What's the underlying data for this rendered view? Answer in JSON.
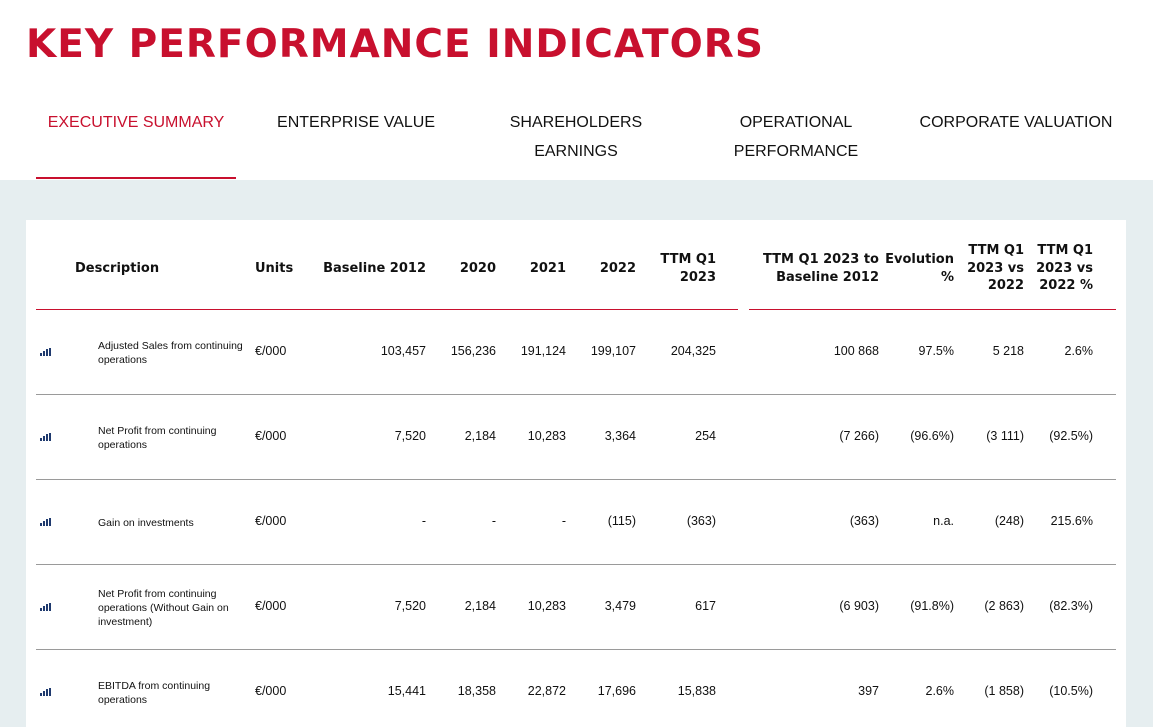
{
  "page": {
    "title": "KEY PERFORMANCE INDICATORS"
  },
  "tabs": [
    {
      "line1": "EXECUTIVE SUMMARY",
      "line2": ""
    },
    {
      "line1": "ENTERPRISE VALUE",
      "line2": ""
    },
    {
      "line1": "SHAREHOLDERS",
      "line2": "EARNINGS"
    },
    {
      "line1": "OPERATIONAL",
      "line2": "PERFORMANCE"
    },
    {
      "line1": "CORPORATE VALUATION",
      "line2": ""
    }
  ],
  "active_tab": "EXECUTIVE SUMMARY",
  "colors": {
    "brand_red": "#c8102e",
    "background_grey": "#e6eef0",
    "icon_blue": "#1f3a6e"
  },
  "table": {
    "headers": {
      "description": "Description",
      "units": "Units",
      "baseline": "Baseline 2012",
      "y2020": "2020",
      "y2021": "2021",
      "y2022": "2022",
      "ttm_l1": "TTM Q1",
      "ttm_l2": "2023",
      "ttm_vs_base_l1": "TTM Q1 2023 to",
      "ttm_vs_base_l2": "Baseline 2012",
      "evol_l1": "Evolution",
      "evol_l2": "%",
      "ttm_vs22_l1": "TTM Q1",
      "ttm_vs22_l2": "2023 vs",
      "ttm_vs22_l3": "2022",
      "ttm_vs22pct_l1": "TTM Q1",
      "ttm_vs22pct_l2": "2023 vs",
      "ttm_vs22pct_l3": "2022 %"
    },
    "row_icon": "bar-chart-icon",
    "rows": [
      {
        "desc_lines": [
          "Adjusted Sales from continuing",
          "operations"
        ],
        "units": "€/000",
        "baseline": "103,457",
        "y2020": "156,236",
        "y2021": "191,124",
        "y2022": "199,107",
        "ttm": "204,325",
        "ttm_vs_base": "100 868",
        "evolution": "97.5%",
        "ttm_vs22": "5 218",
        "ttm_vs22_pct": "2.6%"
      },
      {
        "desc_lines": [
          "Net Profit from continuing",
          "operations"
        ],
        "units": "€/000",
        "baseline": "7,520",
        "y2020": "2,184",
        "y2021": "10,283",
        "y2022": "3,364",
        "ttm": "254",
        "ttm_vs_base": "(7 266)",
        "evolution": "(96.6%)",
        "ttm_vs22": "(3 111)",
        "ttm_vs22_pct": "(92.5%)"
      },
      {
        "desc_lines": [
          "Gain on investments"
        ],
        "units": "€/000",
        "baseline": "-",
        "y2020": "-",
        "y2021": "-",
        "y2022": "(115)",
        "ttm": "(363)",
        "ttm_vs_base": "(363)",
        "evolution": "n.a.",
        "ttm_vs22": "(248)",
        "ttm_vs22_pct": "215.6%"
      },
      {
        "desc_lines": [
          "Net Profit from continuing",
          "operations (Without Gain on",
          "investment)"
        ],
        "units": "€/000",
        "baseline": "7,520",
        "y2020": "2,184",
        "y2021": "10,283",
        "y2022": "3,479",
        "ttm": "617",
        "ttm_vs_base": "(6 903)",
        "evolution": "(91.8%)",
        "ttm_vs22": "(2 863)",
        "ttm_vs22_pct": "(82.3%)"
      },
      {
        "desc_lines": [
          "EBITDA from continuing",
          "operations"
        ],
        "units": "€/000",
        "baseline": "15,441",
        "y2020": "18,358",
        "y2021": "22,872",
        "y2022": "17,696",
        "ttm": "15,838",
        "ttm_vs_base": "397",
        "evolution": "2.6%",
        "ttm_vs22": "(1 858)",
        "ttm_vs22_pct": "(10.5%)"
      }
    ]
  }
}
